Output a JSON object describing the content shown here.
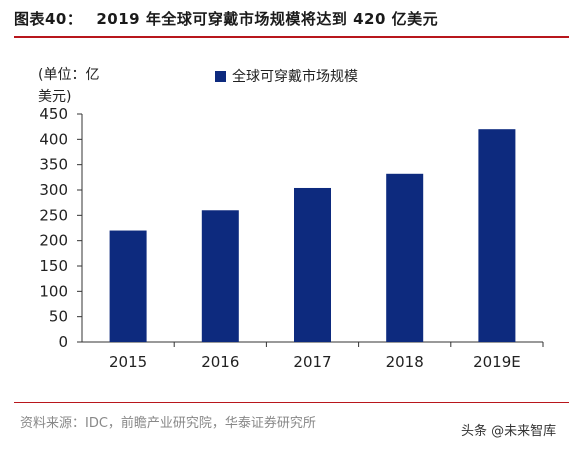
{
  "header": {
    "label": "图表40：",
    "title": "2019 年全球可穿戴市场规模将达到 420 亿美元"
  },
  "unit_label": "(单位：亿美元)",
  "source": "资料来源：IDC，前瞻产业研究院，华泰证券研究所",
  "watermark": "头条 @未来智库",
  "colors": {
    "bar": "#0d2a7e",
    "rule": "#b8161c",
    "axis": "#333333"
  },
  "chart_data": {
    "type": "bar",
    "categories": [
      "2015",
      "2016",
      "2017",
      "2018",
      "2019E"
    ],
    "series": [
      {
        "name": "全球可穿戴市场规模",
        "values": [
          220,
          260,
          304,
          332,
          420
        ]
      }
    ],
    "ylim": [
      0,
      450
    ],
    "yticks": [
      0,
      50,
      100,
      150,
      200,
      250,
      300,
      350,
      400,
      450
    ],
    "grid": false,
    "legend": "top"
  }
}
